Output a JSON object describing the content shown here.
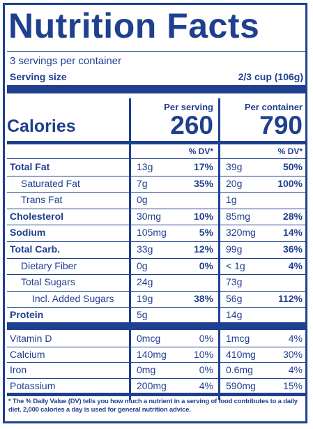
{
  "header": {
    "title": "Nutrition Facts",
    "servings": "3 servings per container",
    "serving_size_label": "Serving size",
    "serving_size_value": "2/3 cup (106g)"
  },
  "columns": {
    "per_serving": "Per serving",
    "per_container": "Per container",
    "dv_header": "% DV*"
  },
  "calories": {
    "label": "Calories",
    "per_serving": "260",
    "per_container": "790"
  },
  "nutrients": [
    {
      "name": "Total Fat",
      "serving_amt": "13g",
      "serving_dv": "17%",
      "container_amt": "39g",
      "container_dv": "50%"
    },
    {
      "name": "Saturated Fat",
      "serving_amt": "7g",
      "serving_dv": "35%",
      "container_amt": "20g",
      "container_dv": "100%"
    },
    {
      "name": "Trans Fat",
      "serving_amt": "0g",
      "serving_dv": "",
      "container_amt": "1g",
      "container_dv": ""
    },
    {
      "name": "Cholesterol",
      "serving_amt": "30mg",
      "serving_dv": "10%",
      "container_amt": "85mg",
      "container_dv": "28%"
    },
    {
      "name": "Sodium",
      "serving_amt": "105mg",
      "serving_dv": "5%",
      "container_amt": "320mg",
      "container_dv": "14%"
    },
    {
      "name": "Total Carb.",
      "serving_amt": "33g",
      "serving_dv": "12%",
      "container_amt": "99g",
      "container_dv": "36%"
    },
    {
      "name": "Dietary Fiber",
      "serving_amt": "0g",
      "serving_dv": "0%",
      "container_amt": "< 1g",
      "container_dv": "4%"
    },
    {
      "name": "Total Sugars",
      "serving_amt": "24g",
      "serving_dv": "",
      "container_amt": "73g",
      "container_dv": ""
    },
    {
      "name": "Incl. Added Sugars",
      "serving_amt": "19g",
      "serving_dv": "38%",
      "container_amt": "56g",
      "container_dv": "112%"
    },
    {
      "name": "Protein",
      "serving_amt": "5g",
      "serving_dv": "",
      "container_amt": "14g",
      "container_dv": ""
    }
  ],
  "vitamins": [
    {
      "name": "Vitamin D",
      "serving_amt": "0mcg",
      "serving_dv": "0%",
      "container_amt": "1mcg",
      "container_dv": "4%"
    },
    {
      "name": "Calcium",
      "serving_amt": "140mg",
      "serving_dv": "10%",
      "container_amt": "410mg",
      "container_dv": "30%"
    },
    {
      "name": "Iron",
      "serving_amt": "0mg",
      "serving_dv": "0%",
      "container_amt": "0.6mg",
      "container_dv": "4%"
    },
    {
      "name": "Potassium",
      "serving_amt": "200mg",
      "serving_dv": "4%",
      "container_amt": "590mg",
      "container_dv": "15%"
    }
  ],
  "footnote": "* The % Daily Value (DV) tells you how much a nutrient in a serving of food contributes to a daily diet. 2,000 calories a day is used for general nutrition advice.",
  "colors": {
    "ink": "#1f3f8f",
    "background": "#ffffff"
  }
}
